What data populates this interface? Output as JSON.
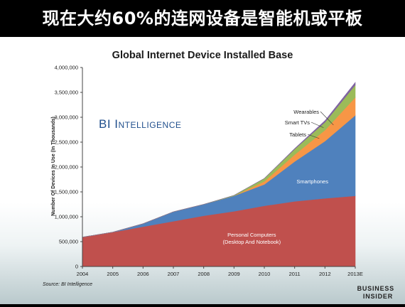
{
  "slide_title": "现在大约60%的连网设备是智能机或平板",
  "chart_data": {
    "type": "area",
    "stacked": true,
    "title": "Global Internet Device Installed Base",
    "ylabel": "Number Of Devices In Use (In Thousands)",
    "xlabel": "",
    "categories": [
      "2004",
      "2005",
      "2006",
      "2007",
      "2008",
      "2009",
      "2010",
      "2011",
      "2012",
      "2013E"
    ],
    "ylim": [
      0,
      4000000
    ],
    "yticks": [
      0,
      500000,
      1000000,
      1500000,
      2000000,
      2500000,
      3000000,
      3500000,
      4000000
    ],
    "ytick_labels": [
      "0",
      "500,000",
      "1,000,000",
      "1,500,000",
      "2,000,000",
      "2,500,000",
      "3,000,000",
      "3,500,000",
      "4,000,000"
    ],
    "grid": false,
    "series": [
      {
        "name": "Personal Computers (Desktop And Notebook)",
        "label_lines": [
          "Personal Computers",
          "(Desktop And Notebook)"
        ],
        "color": "#c0504d",
        "values": [
          590000,
          690000,
          800000,
          910000,
          1020000,
          1110000,
          1220000,
          1310000,
          1370000,
          1420000
        ]
      },
      {
        "name": "Smartphones",
        "label_lines": [
          "Smartphones"
        ],
        "color": "#4f81bd",
        "values": [
          0,
          0,
          60000,
          190000,
          230000,
          310000,
          430000,
          800000,
          1150000,
          1620000
        ]
      },
      {
        "name": "Tablets",
        "label_lines": [
          "Tablets"
        ],
        "color": "#f79646",
        "values": [
          0,
          0,
          0,
          0,
          0,
          0,
          60000,
          140000,
          220000,
          360000
        ]
      },
      {
        "name": "Smart TVs",
        "label_lines": [
          "Smart TVs"
        ],
        "color": "#9bbb59",
        "values": [
          0,
          0,
          0,
          0,
          0,
          10000,
          60000,
          110000,
          160000,
          250000
        ]
      },
      {
        "name": "Wearables",
        "label_lines": [
          "Wearables"
        ],
        "color": "#8064a2",
        "values": [
          0,
          0,
          0,
          0,
          0,
          0,
          0,
          10000,
          30000,
          50000
        ]
      }
    ],
    "watermark": "BI Intelligence",
    "source": "Source: BI Intelligence",
    "logo": "BUSINESS INSIDER"
  }
}
